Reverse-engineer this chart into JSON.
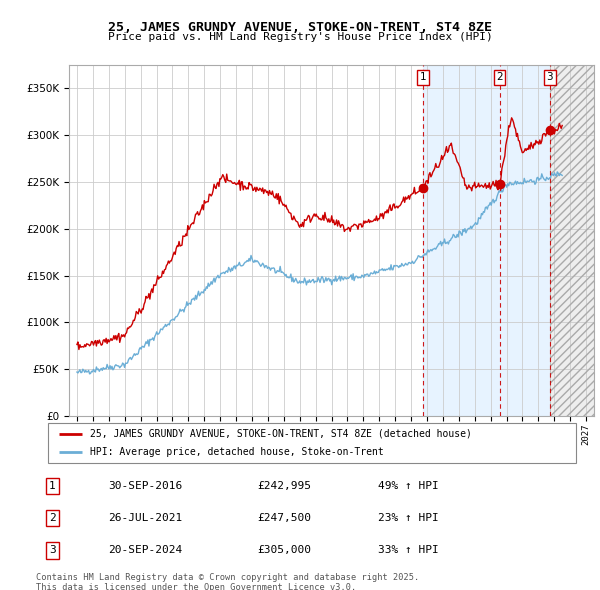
{
  "title": "25, JAMES GRUNDY AVENUE, STOKE-ON-TRENT, ST4 8ZE",
  "subtitle": "Price paid vs. HM Land Registry's House Price Index (HPI)",
  "legend_line1": "25, JAMES GRUNDY AVENUE, STOKE-ON-TRENT, ST4 8ZE (detached house)",
  "legend_line2": "HPI: Average price, detached house, Stoke-on-Trent",
  "footer1": "Contains HM Land Registry data © Crown copyright and database right 2025.",
  "footer2": "This data is licensed under the Open Government Licence v3.0.",
  "transactions": [
    {
      "num": 1,
      "date": "30-SEP-2016",
      "price": "£242,995",
      "change": "49% ↑ HPI",
      "year": 2016.75
    },
    {
      "num": 2,
      "date": "26-JUL-2021",
      "price": "£247,500",
      "change": "23% ↑ HPI",
      "year": 2021.56
    },
    {
      "num": 3,
      "date": "20-SEP-2024",
      "price": "£305,000",
      "change": "33% ↑ HPI",
      "year": 2024.72
    }
  ],
  "hpi_color": "#6baed6",
  "price_color": "#cc0000",
  "background_color": "#ffffff",
  "plot_bg_color": "#ffffff",
  "grid_color": "#cccccc",
  "shade_color": "#ddeeff",
  "ylim": [
    0,
    375000
  ],
  "yticks": [
    0,
    50000,
    100000,
    150000,
    200000,
    250000,
    300000,
    350000
  ],
  "xlim_start": 1994.5,
  "xlim_end": 2027.5,
  "tr_prices": [
    242995,
    247500,
    305000
  ]
}
